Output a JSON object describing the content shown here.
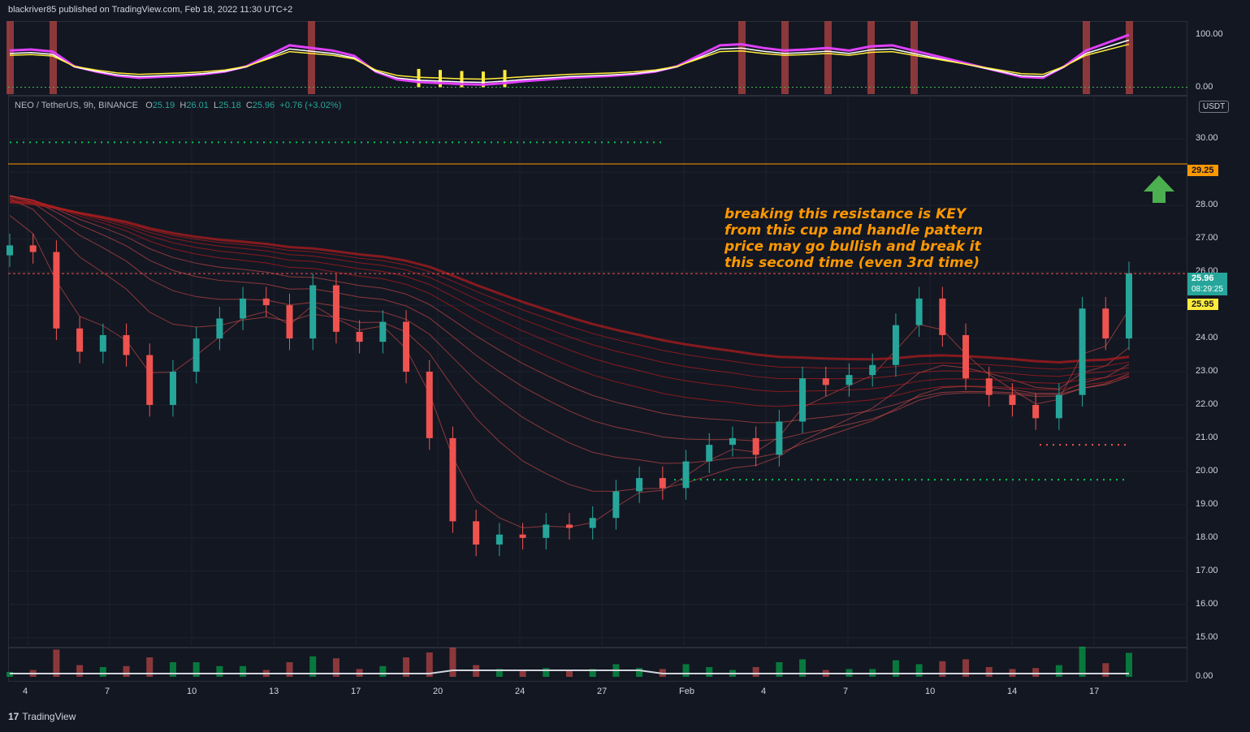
{
  "header": {
    "publisher_line": "blackriver85 published on TradingView.com, Feb 18, 2022 11:30 UTC+2"
  },
  "footer": {
    "logo_text": "TradingView"
  },
  "legend": {
    "symbol": "NEO / TetherUS, 9h, BINANCE",
    "open_label": "O",
    "open": "25.19",
    "high_label": "H",
    "high": "26.01",
    "low_label": "L",
    "low": "25.18",
    "close_label": "C",
    "close": "25.96",
    "change": "+0.76 (+3.02%)"
  },
  "axis_currency": "USDT",
  "price_tags": {
    "resistance": "29.25",
    "last_price": "25.96",
    "countdown": "08:29:25",
    "prev_close": "25.95"
  },
  "annotation": [
    "breaking this resistance is KEY",
    "from this cup and handle pattern",
    "price may go bullish and break it",
    "this second time (even 3rd time)"
  ],
  "colors": {
    "background": "#131722",
    "bull": "#26a69a",
    "bear": "#ef5350",
    "annotation": "#ff9800",
    "resistance_line": "#ff9800",
    "oscillator_magenta": "#e040fb",
    "ribbon_green": "#00c853",
    "ribbon_red": "#b71c1c",
    "arrow_green": "#4caf50"
  },
  "chart_data": [
    {
      "type": "line",
      "title": "",
      "y_ticks": [
        "100.00",
        "0.00"
      ],
      "ylim": [
        -10,
        120
      ],
      "series": [
        {
          "values": [
            70,
            72,
            68,
            40,
            30,
            22,
            18,
            20,
            22,
            25,
            30,
            40,
            60,
            80,
            75,
            70,
            60,
            30,
            15,
            10,
            8,
            6,
            5,
            8,
            12,
            15,
            18,
            20,
            22,
            25,
            30,
            40,
            60,
            80,
            82,
            75,
            70,
            72,
            75,
            70,
            78,
            80,
            70,
            60,
            50,
            40,
            30,
            20,
            18,
            40,
            70,
            85,
            100
          ]
        }
      ]
    },
    {
      "type": "line",
      "title": "",
      "y_ticks": [
        "30.00",
        "29.00",
        "28.00",
        "27.00",
        "26.00",
        "25.00",
        "24.00",
        "23.00",
        "22.00",
        "21.00",
        "20.00",
        "19.00",
        "18.00",
        "17.00",
        "16.00",
        "15.00"
      ],
      "ylim": [
        14.7,
        31.3
      ],
      "x_ticks": [
        "4",
        "7",
        "10",
        "13",
        "17",
        "20",
        "24",
        "27",
        "Feb",
        "4",
        "7",
        "10",
        "14",
        "17"
      ],
      "series": [
        {
          "values": [
            26.8,
            26.6,
            24.3,
            23.6,
            24.1,
            23.5,
            22.0,
            23.0,
            24.0,
            24.6,
            25.2,
            25.0,
            24.0,
            25.6,
            24.2,
            23.9,
            24.5,
            23.0,
            21.0,
            18.5,
            17.8,
            18.1,
            18.0,
            18.4,
            18.3,
            18.6,
            19.4,
            19.8,
            19.5,
            20.3,
            20.8,
            21.0,
            20.5,
            21.5,
            22.8,
            22.6,
            22.9,
            23.2,
            24.4,
            25.2,
            24.1,
            22.8,
            22.3,
            22.0,
            21.6,
            22.3,
            24.9,
            24.0,
            25.96
          ]
        }
      ],
      "levels": [
        29.25,
        25.95,
        29.9,
        19.75,
        20.8
      ]
    },
    {
      "type": "bar",
      "title": "",
      "y_ticks": [
        "0.00"
      ]
    }
  ]
}
